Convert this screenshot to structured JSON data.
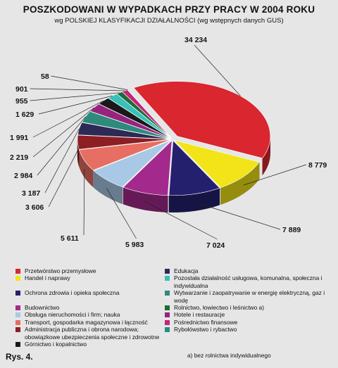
{
  "title": "POSZKODOWANI   W   WYPADKACH  PRZY PRACY W 2004 ROKU",
  "subtitle": "wg  POLSKIEJ KLASYFIKACJI DZIAŁALNOŚCI  (wg wstępnych danych GUS)",
  "figure_label": "Rys. 4.",
  "footnote": "a) bez rolnictwa indywidualnego",
  "chart_data": {
    "type": "pie",
    "style": "3d-exploded",
    "slices": [
      {
        "name": "Przetwórstwo przemysłowe",
        "value": 34234,
        "label": "34 234",
        "color": "#d9262f"
      },
      {
        "name": "Handel i naprawy",
        "value": 8779,
        "label": "8 779",
        "color": "#f2e418"
      },
      {
        "name": "Ochrona zdrowia i opieka społeczna",
        "value": 7889,
        "label": "7 889",
        "color": "#24206e"
      },
      {
        "name": "Budownictwo",
        "value": 7024,
        "label": "7 024",
        "color": "#a32a8c"
      },
      {
        "name": "Obsługa nieruchomości i firm; nauka",
        "value": 5983,
        "label": "5 983",
        "color": "#a9c8e6"
      },
      {
        "name": "Transport, gospodarka magazynowa i łączność",
        "value": 5611,
        "label": "5 611",
        "color": "#e66e62"
      },
      {
        "name": "Administracja publiczna i obrona narodowa; obowiązkowe ubezpieczenia społeczne i zdrowotne",
        "value": 3606,
        "label": "3 606",
        "color": "#8c1e24"
      },
      {
        "name": "Edukacja",
        "value": 3187,
        "label": "3 187",
        "color": "#2d2a56"
      },
      {
        "name": "Wytwarzanie i zaopatrywanie w energię elektryczną, gaz i wodę",
        "value": 2984,
        "label": "2 984",
        "color": "#2e8a7a"
      },
      {
        "name": "Hotele i restauracje",
        "value": 2219,
        "label": "2 219",
        "color": "#97237f"
      },
      {
        "name": "Górnictwo i kopalnictwo",
        "value": 1991,
        "label": "1 991",
        "color": "#1a1a1a"
      },
      {
        "name": "Pozostała działalność usługowa, komunalna, społeczna i indywidualna",
        "value": 1629,
        "label": "1 629",
        "color": "#39c0b8"
      },
      {
        "name": "Rolnictwo, łowiectwo i leśnictwo a)",
        "value": 955,
        "label": "955",
        "color": "#1d6b39"
      },
      {
        "name": "Pośrednictwo finansowe",
        "value": 901,
        "label": "901",
        "color": "#c4247a"
      },
      {
        "name": "Rybołówstwo i rybactwo",
        "value": 58,
        "label": "58",
        "color": "#2a8a8a"
      }
    ]
  },
  "legend": [
    {
      "label": "Przetwórstwo przemysłowe",
      "color": "#d9262f"
    },
    {
      "label": "Edukacja",
      "color": "#2d2a56"
    },
    {
      "label": "Handel i naprawy",
      "color": "#f2e418"
    },
    {
      "label": "Pozostała działalność usługowa, komunalna, społeczna i indywidualna",
      "color": "#39c0b8"
    },
    {
      "label": "Ochrona zdrowia i opieka społeczna",
      "color": "#24206e"
    },
    {
      "label": "Wytwarzanie i zaopatrywanie w energię elektryczną, gaz i wodę",
      "color": "#2e8a7a"
    },
    {
      "label": "Budownictwo",
      "color": "#a32a8c"
    },
    {
      "label": "Rolnictwo, łowiectwo i leśnictwo a)",
      "color": "#1d6b39"
    },
    {
      "label": "Obsługa nieruchomości i firm; nauka",
      "color": "#a9c8e6"
    },
    {
      "label": "Hotele i restauracje",
      "color": "#97237f"
    },
    {
      "label": "Transport, gospodarka magazynowa i łączność",
      "color": "#e66e62"
    },
    {
      "label": "Pośrednictwo finansowe",
      "color": "#c4247a"
    },
    {
      "label": "Administracja publiczna i obrona narodowa; obowiązkowe ubezpieczenia społeczne i zdrowotne",
      "color": "#8c1e24"
    },
    {
      "label": "Rybołówstwo i rybactwo",
      "color": "#2a8a8a"
    },
    {
      "label": "Górnictwo i kopalnictwo",
      "color": "#1a1a1a"
    }
  ]
}
